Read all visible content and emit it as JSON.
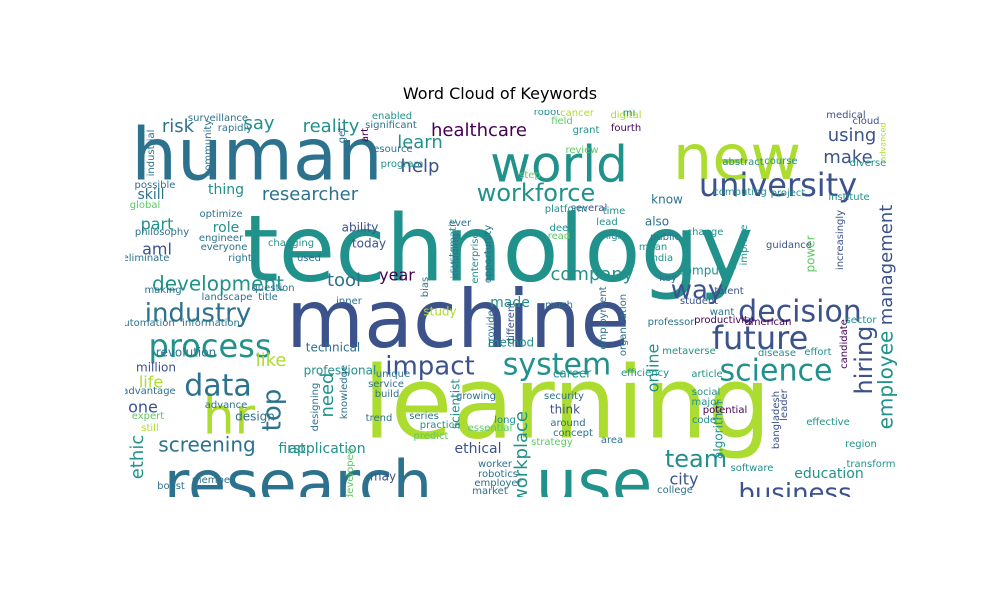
{
  "title": "Word Cloud of Keywords",
  "palette": [
    "#440154",
    "#472d7b",
    "#3b528b",
    "#2c728e",
    "#21918c",
    "#28ae80",
    "#5ec962",
    "#addc30",
    "#fde725"
  ],
  "words": [
    "technology",
    "learning",
    "machine",
    "human",
    "research",
    "use",
    "new",
    "world",
    "hr",
    "university",
    "system",
    "process",
    "future",
    "decision",
    "science",
    "industry",
    "workforce",
    "business",
    "data",
    "impact",
    "team",
    "way",
    "hiring",
    "employee",
    "development",
    "top",
    "screening",
    "healthcare",
    "management",
    "company",
    "reality",
    "researcher",
    "say",
    "risk",
    "using",
    "make",
    "learn",
    "help",
    "tool",
    "year",
    "like",
    "part",
    "aml",
    "life",
    "need",
    "one",
    "ethic",
    "workplace",
    "online",
    "city",
    "education",
    "ethical",
    "application",
    "first",
    "made",
    "million",
    "revolution",
    "role",
    "skill",
    "thing",
    "ability",
    "today",
    "professional",
    "technical",
    "may",
    "design",
    "think",
    "algorithm",
    "career",
    "scientist",
    "also",
    "know",
    "computer",
    "power",
    "study",
    "method",
    "unique",
    "several",
    "lead",
    "high",
    "student",
    "talent",
    "want",
    "professor",
    "american",
    "disease",
    "effort",
    "article",
    "metaverse",
    "efficiency",
    "social",
    "major",
    "potential",
    "code",
    "effective",
    "transform",
    "software",
    "region",
    "leader",
    "bangladesh",
    "candidate",
    "sector",
    "institute",
    "diverse",
    "advanced",
    "medical",
    "cloud",
    "increasingly",
    "guidance",
    "project",
    "computing",
    "abstract",
    "course",
    "fourth",
    "digital",
    "platform",
    "grant",
    "program",
    "resource",
    "robot",
    "field",
    "review",
    "step",
    "time",
    "read",
    "deep",
    "india",
    "change",
    "public",
    "mean",
    "key",
    "productivity",
    "improve",
    "enabled",
    "significant",
    "art",
    "get",
    "used",
    "surveillance",
    "rapidly",
    "community",
    "industrial",
    "possible",
    "global",
    "optimize",
    "engineer",
    "philosophy",
    "everyone",
    "eliminate",
    "right",
    "changing",
    "systematic",
    "ever",
    "opportunity",
    "enterprise",
    "including",
    "bias",
    "inner",
    "question",
    "title",
    "landscape",
    "making",
    "automation",
    "information",
    "provide",
    "different",
    "much",
    "employment",
    "organization",
    "cancer",
    "advantage",
    "expert",
    "still",
    "advance",
    "knowledge",
    "service",
    "build",
    "growing",
    "trend",
    "series",
    "designing",
    "security",
    "around",
    "predict",
    "worker",
    "robotics",
    "employer",
    "market",
    "practice",
    "essential",
    "concept",
    "strategy",
    "area",
    "college",
    "member",
    "boost",
    "long",
    "developed",
    "ml"
  ]
}
